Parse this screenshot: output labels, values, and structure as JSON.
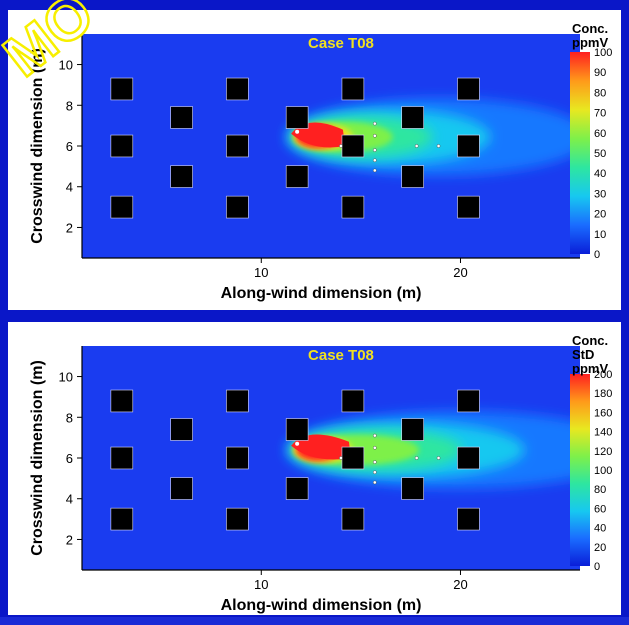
{
  "colors": {
    "frame": "#0a17c8",
    "plume_field": [
      "#1a3cf0",
      "#1578ff",
      "#17c8f0",
      "#2ee6a0",
      "#7ef04a",
      "#e8e820",
      "#ff9a1a",
      "#ff2020"
    ],
    "obstacle": "#000000",
    "title_text": "#f0e020",
    "watermark": "#f7ef00"
  },
  "watermark": {
    "text": "MO"
  },
  "chart_data": [
    {
      "type": "heatmap",
      "title": "Case T08",
      "xlabel": "Along-wind dimension (m)",
      "ylabel": "Crosswind dimension (m)",
      "xlim": [
        1,
        26
      ],
      "ylim": [
        0.5,
        11.5
      ],
      "xticks": [
        10,
        20
      ],
      "yticks": [
        2,
        4,
        6,
        8,
        10
      ],
      "colorbar": {
        "title_lines": [
          "Conc.",
          "ppmV"
        ],
        "ticks": [
          0,
          10,
          20,
          30,
          40,
          50,
          60,
          70,
          80,
          90,
          100
        ],
        "range": [
          0,
          100
        ]
      },
      "source": {
        "x": 11.8,
        "y": 6.7
      },
      "obstacles": [
        {
          "x": 3.0,
          "y": 8.8
        },
        {
          "x": 8.8,
          "y": 8.8
        },
        {
          "x": 14.6,
          "y": 8.8
        },
        {
          "x": 20.4,
          "y": 8.8
        },
        {
          "x": 6.0,
          "y": 7.4
        },
        {
          "x": 11.8,
          "y": 7.4
        },
        {
          "x": 17.6,
          "y": 7.4
        },
        {
          "x": 3.0,
          "y": 6.0
        },
        {
          "x": 8.8,
          "y": 6.0
        },
        {
          "x": 14.6,
          "y": 6.0
        },
        {
          "x": 20.4,
          "y": 6.0
        },
        {
          "x": 6.0,
          "y": 4.5
        },
        {
          "x": 11.8,
          "y": 4.5
        },
        {
          "x": 17.6,
          "y": 4.5
        },
        {
          "x": 3.0,
          "y": 3.0
        },
        {
          "x": 8.8,
          "y": 3.0
        },
        {
          "x": 14.6,
          "y": 3.0
        },
        {
          "x": 20.4,
          "y": 3.0
        }
      ],
      "sensors": [
        {
          "x": 15.7,
          "y": 7.1
        },
        {
          "x": 15.7,
          "y": 6.5
        },
        {
          "x": 15.7,
          "y": 5.8
        },
        {
          "x": 15.7,
          "y": 5.3
        },
        {
          "x": 15.7,
          "y": 4.8
        },
        {
          "x": 14.0,
          "y": 6.0
        },
        {
          "x": 17.8,
          "y": 6.0
        },
        {
          "x": 18.9,
          "y": 6.0
        }
      ]
    },
    {
      "type": "heatmap",
      "title": "Case T08",
      "xlabel": "Along-wind dimension (m)",
      "ylabel": "Crosswind dimension (m)",
      "xlim": [
        1,
        26
      ],
      "ylim": [
        0.5,
        11.5
      ],
      "xticks": [
        10,
        20
      ],
      "yticks": [
        2,
        4,
        6,
        8,
        10
      ],
      "colorbar": {
        "title_lines": [
          "Conc.",
          "StD",
          "ppmV"
        ],
        "ticks": [
          0,
          20,
          40,
          60,
          80,
          100,
          120,
          140,
          160,
          180,
          200
        ],
        "range": [
          0,
          200
        ]
      },
      "source": {
        "x": 11.8,
        "y": 6.7
      },
      "obstacles": [
        {
          "x": 3.0,
          "y": 8.8
        },
        {
          "x": 8.8,
          "y": 8.8
        },
        {
          "x": 14.6,
          "y": 8.8
        },
        {
          "x": 20.4,
          "y": 8.8
        },
        {
          "x": 6.0,
          "y": 7.4
        },
        {
          "x": 11.8,
          "y": 7.4
        },
        {
          "x": 17.6,
          "y": 7.4
        },
        {
          "x": 3.0,
          "y": 6.0
        },
        {
          "x": 8.8,
          "y": 6.0
        },
        {
          "x": 14.6,
          "y": 6.0
        },
        {
          "x": 20.4,
          "y": 6.0
        },
        {
          "x": 6.0,
          "y": 4.5
        },
        {
          "x": 11.8,
          "y": 4.5
        },
        {
          "x": 17.6,
          "y": 4.5
        },
        {
          "x": 3.0,
          "y": 3.0
        },
        {
          "x": 8.8,
          "y": 3.0
        },
        {
          "x": 14.6,
          "y": 3.0
        },
        {
          "x": 20.4,
          "y": 3.0
        }
      ],
      "sensors": [
        {
          "x": 15.7,
          "y": 7.1
        },
        {
          "x": 15.7,
          "y": 6.5
        },
        {
          "x": 15.7,
          "y": 5.8
        },
        {
          "x": 15.7,
          "y": 5.3
        },
        {
          "x": 15.7,
          "y": 4.8
        },
        {
          "x": 14.0,
          "y": 6.0
        },
        {
          "x": 17.8,
          "y": 6.0
        },
        {
          "x": 18.9,
          "y": 6.0
        }
      ]
    }
  ]
}
